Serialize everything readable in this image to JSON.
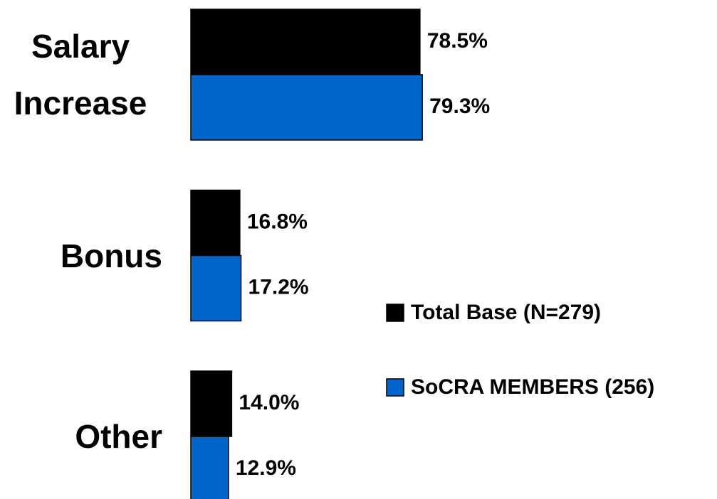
{
  "chart_data": {
    "type": "hbar",
    "categories": [
      "Salary Increase",
      "Bonus",
      "Other"
    ],
    "series": [
      {
        "name": "Total Base (N=279)",
        "color": "#000000",
        "values": [
          78.5,
          16.8,
          14.0
        ],
        "value_labels": [
          "78.5%",
          "16.8%",
          "14.0%"
        ]
      },
      {
        "name": "SoCRA MEMBERS (256)",
        "color": "#0066cc",
        "values": [
          79.3,
          17.2,
          12.9
        ],
        "value_labels": [
          "79.3%",
          "17.2%",
          "12.9%"
        ]
      }
    ]
  }
}
